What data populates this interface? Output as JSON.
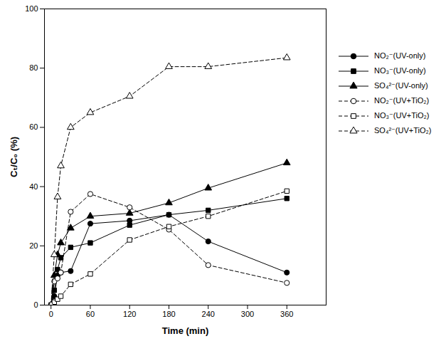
{
  "chart_data": {
    "type": "line",
    "x_label": "Time (min)",
    "y_label": "Cₜ/C₀ (%)",
    "x": [
      0,
      5,
      10,
      15,
      30,
      60,
      120,
      180,
      240,
      360
    ],
    "xlim": [
      -10,
      420
    ],
    "xticks": [
      0,
      60,
      120,
      180,
      240,
      300,
      360
    ],
    "ylim": [
      0,
      100
    ],
    "yticks": [
      0,
      20,
      40,
      60,
      80,
      100
    ],
    "grid": false,
    "legend": "right",
    "series": [
      {
        "name": "NO₂⁻(UV-only)",
        "color": "#000000",
        "marker": "circle",
        "line_style": "solid",
        "values": [
          0,
          3,
          10,
          11,
          11.5,
          27.5,
          28.5,
          30.5,
          21.5,
          11
        ]
      },
      {
        "name": "NO₃⁻(UV-only)",
        "color": "#000000",
        "marker": "square",
        "line_style": "solid",
        "values": [
          0,
          5,
          12,
          16,
          19.5,
          21,
          27,
          30.5,
          32,
          36
        ]
      },
      {
        "name": "SO₄²⁻(UV-only)",
        "color": "#000000",
        "marker": "triangle",
        "line_style": "solid",
        "values": [
          0,
          10,
          17,
          21,
          26,
          30,
          31,
          34.5,
          39.5,
          48
        ]
      },
      {
        "name": "NO₂⁻(UV+TiO₂)",
        "color": "#000000",
        "marker": "circle-open",
        "line_style": "dashed",
        "values": [
          0,
          8,
          9,
          11,
          31.5,
          37.5,
          33,
          25.5,
          13.5,
          7.5
        ]
      },
      {
        "name": "NO₃⁻(UV+TiO₂)",
        "color": "#000000",
        "marker": "square-open",
        "line_style": "dashed",
        "values": [
          0,
          1,
          2,
          3,
          7,
          10.5,
          22,
          26.5,
          30,
          38.5
        ]
      },
      {
        "name": "SO₄²⁻(UV+TiO₂)",
        "color": "#000000",
        "marker": "triangle-open",
        "line_style": "dashed",
        "values": [
          0,
          17,
          36.5,
          47,
          60,
          65,
          70.5,
          80.5,
          80.5,
          83.5
        ]
      }
    ]
  }
}
